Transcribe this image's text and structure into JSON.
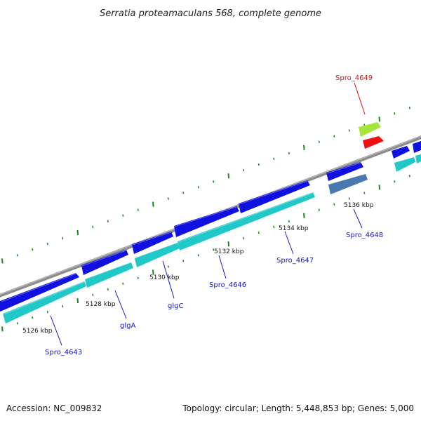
{
  "title": "Serratia proteamaculans 568, complete genome",
  "accession": "Accession: NC_009832",
  "topology": "Topology: circular; Length: 5,448,853 bp; Genes: 5,000",
  "colors": {
    "backbone": "#8c8c8c",
    "tick": "#1a8a1a",
    "gene_blue": "#1010e0",
    "gene_cyan": "#20c8c8",
    "gene_steel": "#4a78b0",
    "gene_lime": "#a6e63a",
    "gene_red": "#ee1111",
    "label_blue": "#1414c8",
    "label_red": "#dd1111"
  },
  "ticks": [
    {
      "label": "5126 kbp"
    },
    {
      "label": "5128 kbp"
    },
    {
      "label": "5130 kbp"
    },
    {
      "label": "5132 kbp"
    },
    {
      "label": "5134 kbp"
    },
    {
      "label": "5136 kbp"
    }
  ],
  "genes": [
    {
      "name": "Spro_4643",
      "color": "label_blue"
    },
    {
      "name": "glgA",
      "color": "label_blue"
    },
    {
      "name": "glgC",
      "color": "label_blue"
    },
    {
      "name": "Spro_4646",
      "color": "label_blue"
    },
    {
      "name": "Spro_4647",
      "color": "label_blue"
    },
    {
      "name": "Spro_4648",
      "color": "label_blue"
    },
    {
      "name": "Spro_4649",
      "color": "label_red"
    }
  ]
}
